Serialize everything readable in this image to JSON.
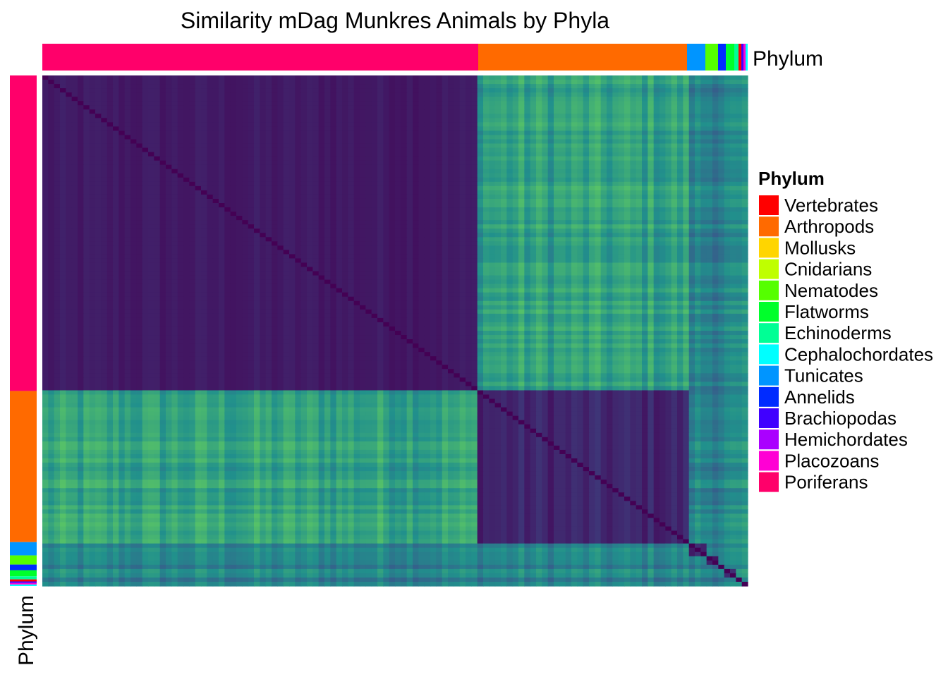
{
  "chart_data": {
    "type": "heatmap",
    "title": "Similarity mDag Munkres Animals by Phyla",
    "annotation_label_top": "Phylum",
    "annotation_label_left": "Phylum",
    "legend_title": "Phylum",
    "phyla": [
      {
        "name": "Vertebrates",
        "color": "#FF0000"
      },
      {
        "name": "Arthropods",
        "color": "#FF6A00"
      },
      {
        "name": "Mollusks",
        "color": "#FFD500"
      },
      {
        "name": "Cnidarians",
        "color": "#BFFF00"
      },
      {
        "name": "Nematodes",
        "color": "#55FF00"
      },
      {
        "name": "Flatworms",
        "color": "#00FF2B"
      },
      {
        "name": "Echinoderms",
        "color": "#00FF95"
      },
      {
        "name": "Cephalochordates",
        "color": "#00FFFF"
      },
      {
        "name": "Tunicates",
        "color": "#0095FF"
      },
      {
        "name": "Annelids",
        "color": "#002BFF"
      },
      {
        "name": "Brachiopodas",
        "color": "#4000FF"
      },
      {
        "name": "Hemichordates",
        "color": "#AA00FF"
      },
      {
        "name": "Placozoans",
        "color": "#FF00D4"
      },
      {
        "name": "Poriferans",
        "color": "#FF006A"
      }
    ],
    "column_groups": [
      {
        "phylum": "Poriferans",
        "fraction": 0.618
      },
      {
        "phylum": "Arthropods",
        "fraction": 0.296
      },
      {
        "phylum": "Tunicates",
        "fraction": 0.026
      },
      {
        "phylum": "Nematodes",
        "fraction": 0.018
      },
      {
        "phylum": "Annelids",
        "fraction": 0.011
      },
      {
        "phylum": "Flatworms",
        "fraction": 0.012
      },
      {
        "phylum": "Echinoderms",
        "fraction": 0.006
      },
      {
        "phylum": "Vertebrates",
        "fraction": 0.004
      },
      {
        "phylum": "Brachiopodas",
        "fraction": 0.003
      },
      {
        "phylum": "Placozoans",
        "fraction": 0.003
      },
      {
        "phylum": "Cephalochordates",
        "fraction": 0.003
      }
    ],
    "color_scale": {
      "name": "viridis",
      "low_color": "#440154",
      "mid_color": "#21908C",
      "high_color": "#FDE725"
    },
    "blocks": [
      {
        "rows": "Poriferans",
        "cols": "Poriferans",
        "value": 0.06
      },
      {
        "rows": "Poriferans",
        "cols": "Arthropods",
        "value": 0.55
      },
      {
        "rows": "Arthropods",
        "cols": "Poriferans",
        "value": 0.55
      },
      {
        "rows": "Arthropods",
        "cols": "Arthropods",
        "value": 0.08
      },
      {
        "rows": "Other phyla",
        "cols": "All",
        "value": 0.45
      }
    ]
  }
}
